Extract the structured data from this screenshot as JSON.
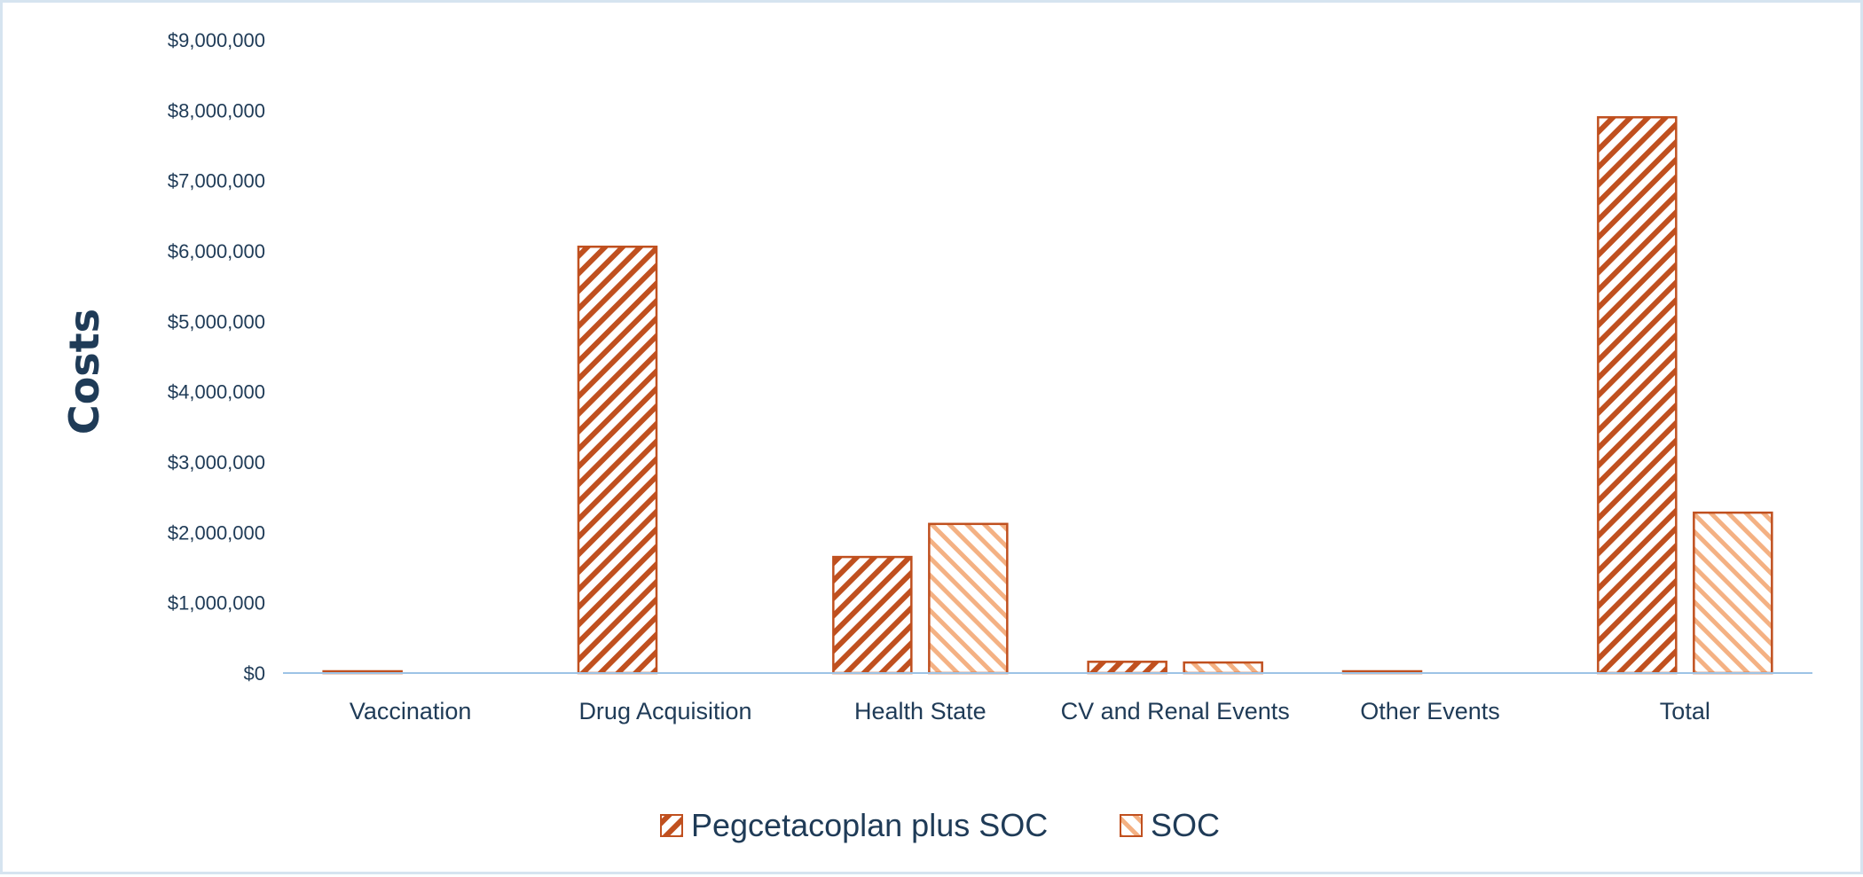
{
  "chart_data": {
    "type": "bar",
    "ylabel": "Costs",
    "xlabel": "",
    "title": "",
    "categories": [
      "Vaccination",
      "Drug Acquisition",
      "Health State",
      "CV and Renal Events",
      "Other Events",
      "Total"
    ],
    "series": [
      {
        "name": "Pegcetacoplan plus SOC",
        "values": [
          20000,
          6060000,
          1650000,
          160000,
          10000,
          7900000
        ],
        "pattern": "hatch-up",
        "color": "#c0501f",
        "fill_color": "#ffffff"
      },
      {
        "name": "SOC",
        "values": [
          0,
          0,
          2120000,
          150000,
          0,
          2280000
        ],
        "pattern": "hatch-down",
        "color": "#c0501f",
        "fill_color": "#f4b183"
      }
    ],
    "ylim": [
      0,
      9000000
    ],
    "yticks": [
      0,
      1000000,
      2000000,
      3000000,
      4000000,
      5000000,
      6000000,
      7000000,
      8000000,
      9000000
    ],
    "ytick_labels": [
      "$0",
      "$1,000,000",
      "$2,000,000",
      "$3,000,000",
      "$4,000,000",
      "$5,000,000",
      "$6,000,000",
      "$7,000,000",
      "$8,000,000",
      "$9,000,000"
    ],
    "grid": false,
    "legend_position": "bottom-center",
    "axis_color": "#9dc3e6",
    "text_color": "#1f3b57"
  }
}
